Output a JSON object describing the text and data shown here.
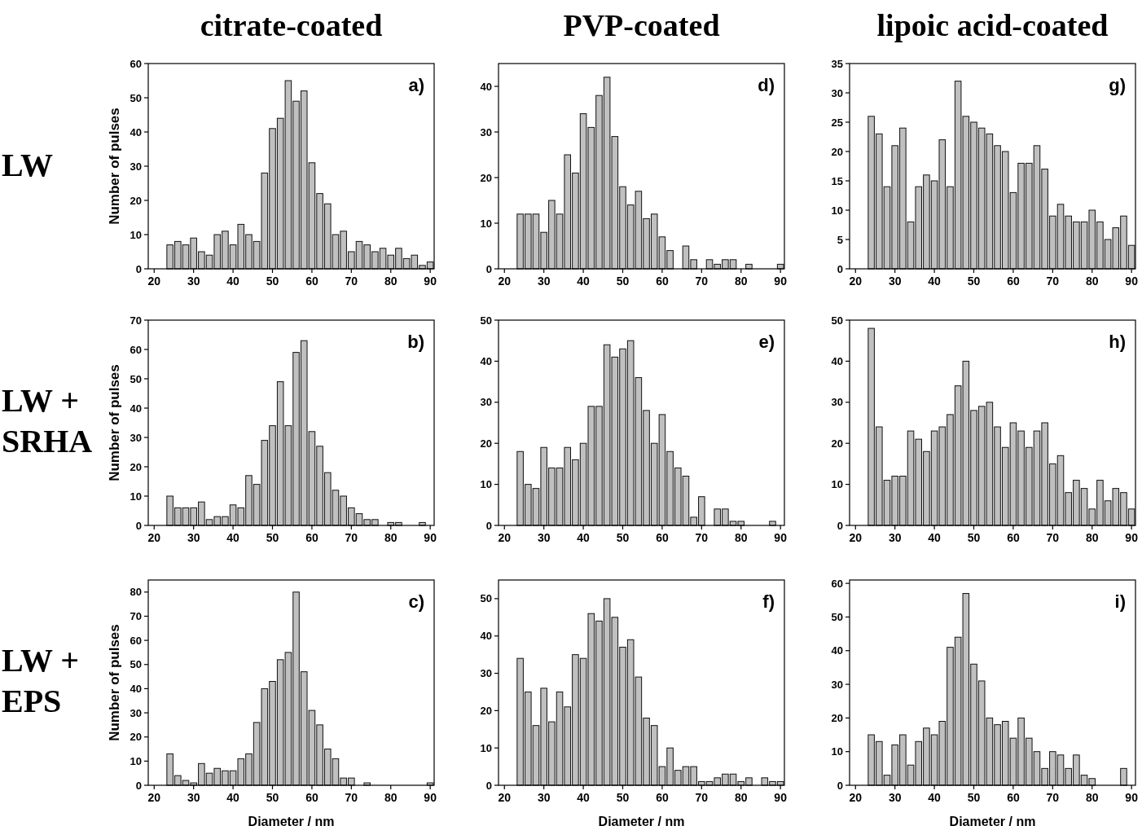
{
  "chart_data": [
    {
      "type": "histogram",
      "title": "citrate-coated",
      "ylabel": "Number of pulses",
      "annotations": [
        "a)",
        "LW"
      ],
      "color": "#c0c0c0",
      "bins": [
        23,
        25,
        27,
        29,
        31,
        33,
        35,
        37,
        39,
        41,
        43,
        45,
        47,
        49,
        51,
        53,
        55,
        57,
        59,
        61,
        63,
        65,
        67,
        69,
        71,
        73,
        75,
        77,
        79,
        81,
        83,
        85,
        87,
        89,
        91
      ],
      "values": [
        7,
        8,
        7,
        9,
        5,
        4,
        10,
        11,
        7,
        13,
        10,
        8,
        28,
        41,
        44,
        55,
        49,
        52,
        31,
        22,
        19,
        10,
        11,
        5,
        8,
        7,
        5,
        6,
        4,
        6,
        3,
        4,
        1,
        2
      ],
      "xlim": [
        18.5,
        91
      ],
      "xticks": [
        20,
        30,
        40,
        50,
        60,
        70,
        80,
        90
      ],
      "ylim": [
        0,
        60
      ],
      "yticks": [
        0,
        10,
        20,
        30,
        40,
        50,
        60
      ]
    },
    {
      "type": "histogram",
      "title": "PVP-coated",
      "annotations": [
        "d)"
      ],
      "color": "#c0c0c0",
      "bins": [
        23,
        25,
        27,
        29,
        31,
        33,
        35,
        37,
        39,
        41,
        43,
        45,
        47,
        49,
        51,
        53,
        55,
        57,
        59,
        61,
        63,
        65,
        67,
        69,
        71,
        73,
        75,
        77,
        79,
        81,
        83,
        85,
        87,
        89,
        91
      ],
      "values": [
        12,
        12,
        12,
        8,
        15,
        12,
        25,
        21,
        34,
        31,
        38,
        42,
        29,
        18,
        14,
        17,
        11,
        12,
        7,
        4,
        0,
        5,
        2,
        0,
        2,
        1,
        2,
        2,
        0,
        1,
        0,
        0,
        0,
        1
      ],
      "xlim": [
        18.5,
        91
      ],
      "xticks": [
        20,
        30,
        40,
        50,
        60,
        70,
        80,
        90
      ],
      "ylim": [
        0,
        45
      ],
      "yticks": [
        0,
        10,
        20,
        30,
        40
      ]
    },
    {
      "type": "histogram",
      "title": "lipoic acid-coated",
      "annotations": [
        "g)"
      ],
      "color": "#c0c0c0",
      "bins": [
        23,
        25,
        27,
        29,
        31,
        33,
        35,
        37,
        39,
        41,
        43,
        45,
        47,
        49,
        51,
        53,
        55,
        57,
        59,
        61,
        63,
        65,
        67,
        69,
        71,
        73,
        75,
        77,
        79,
        81,
        83,
        85,
        87,
        89,
        91
      ],
      "values": [
        26,
        23,
        14,
        21,
        24,
        8,
        14,
        16,
        15,
        22,
        14,
        32,
        26,
        25,
        24,
        23,
        21,
        20,
        13,
        18,
        18,
        21,
        17,
        9,
        11,
        9,
        8,
        8,
        10,
        8,
        5,
        7,
        9,
        4
      ],
      "xlim": [
        18.5,
        91
      ],
      "xticks": [
        20,
        30,
        40,
        50,
        60,
        70,
        80,
        90
      ],
      "ylim": [
        0,
        35
      ],
      "yticks": [
        0,
        5,
        10,
        15,
        20,
        25,
        30,
        35
      ]
    },
    {
      "type": "histogram",
      "ylabel": "Number of pulses",
      "annotations": [
        "b)",
        "LW + SRHA"
      ],
      "color": "#c0c0c0",
      "bins": [
        23,
        25,
        27,
        29,
        31,
        33,
        35,
        37,
        39,
        41,
        43,
        45,
        47,
        49,
        51,
        53,
        55,
        57,
        59,
        61,
        63,
        65,
        67,
        69,
        71,
        73,
        75,
        77,
        79,
        81,
        83,
        85,
        87,
        89,
        91
      ],
      "values": [
        10,
        6,
        6,
        6,
        8,
        2,
        3,
        3,
        7,
        6,
        17,
        14,
        29,
        34,
        49,
        34,
        59,
        63,
        32,
        27,
        18,
        12,
        10,
        6,
        4,
        2,
        2,
        0,
        1,
        1,
        0,
        0,
        1,
        0
      ],
      "xlim": [
        18.5,
        91
      ],
      "xticks": [
        20,
        30,
        40,
        50,
        60,
        70,
        80,
        90
      ],
      "ylim": [
        0,
        70
      ],
      "yticks": [
        0,
        10,
        20,
        30,
        40,
        50,
        60,
        70
      ]
    },
    {
      "type": "histogram",
      "annotations": [
        "e)"
      ],
      "color": "#c0c0c0",
      "bins": [
        23,
        25,
        27,
        29,
        31,
        33,
        35,
        37,
        39,
        41,
        43,
        45,
        47,
        49,
        51,
        53,
        55,
        57,
        59,
        61,
        63,
        65,
        67,
        69,
        71,
        73,
        75,
        77,
        79,
        81,
        83,
        85,
        87,
        89,
        91
      ],
      "values": [
        18,
        10,
        9,
        19,
        14,
        14,
        19,
        16,
        20,
        29,
        29,
        44,
        41,
        43,
        45,
        36,
        28,
        20,
        27,
        18,
        14,
        12,
        2,
        7,
        0,
        4,
        4,
        1,
        1,
        0,
        0,
        0,
        1,
        0
      ],
      "xlim": [
        18.5,
        91
      ],
      "xticks": [
        20,
        30,
        40,
        50,
        60,
        70,
        80,
        90
      ],
      "ylim": [
        0,
        50
      ],
      "yticks": [
        0,
        10,
        20,
        30,
        40,
        50
      ]
    },
    {
      "type": "histogram",
      "annotations": [
        "h)"
      ],
      "color": "#c0c0c0",
      "bins": [
        23,
        25,
        27,
        29,
        31,
        33,
        35,
        37,
        39,
        41,
        43,
        45,
        47,
        49,
        51,
        53,
        55,
        57,
        59,
        61,
        63,
        65,
        67,
        69,
        71,
        73,
        75,
        77,
        79,
        81,
        83,
        85,
        87,
        89,
        91
      ],
      "values": [
        48,
        24,
        11,
        12,
        12,
        23,
        21,
        18,
        23,
        24,
        27,
        34,
        40,
        28,
        29,
        30,
        24,
        19,
        25,
        23,
        19,
        23,
        25,
        15,
        17,
        8,
        11,
        9,
        4,
        11,
        6,
        9,
        8,
        4
      ],
      "xlim": [
        18.5,
        91
      ],
      "xticks": [
        20,
        30,
        40,
        50,
        60,
        70,
        80,
        90
      ],
      "ylim": [
        0,
        50
      ],
      "yticks": [
        0,
        10,
        20,
        30,
        40,
        50
      ]
    },
    {
      "type": "histogram",
      "xlabel": "Diameter / nm",
      "ylabel": "Number of pulses",
      "annotations": [
        "c)",
        "LW + EPS"
      ],
      "color": "#c0c0c0",
      "bins": [
        23,
        25,
        27,
        29,
        31,
        33,
        35,
        37,
        39,
        41,
        43,
        45,
        47,
        49,
        51,
        53,
        55,
        57,
        59,
        61,
        63,
        65,
        67,
        69,
        71,
        73,
        75,
        77,
        79,
        81,
        83,
        85,
        87,
        89,
        91
      ],
      "values": [
        13,
        4,
        2,
        1,
        9,
        5,
        7,
        6,
        6,
        11,
        13,
        26,
        40,
        43,
        52,
        55,
        80,
        47,
        31,
        25,
        15,
        11,
        3,
        3,
        0,
        1,
        0,
        0,
        0,
        0,
        0,
        0,
        0,
        1
      ],
      "xlim": [
        18.5,
        91
      ],
      "xticks": [
        20,
        30,
        40,
        50,
        60,
        70,
        80,
        90
      ],
      "ylim": [
        0,
        85
      ],
      "yticks": [
        0,
        10,
        20,
        30,
        40,
        50,
        60,
        70,
        80
      ]
    },
    {
      "type": "histogram",
      "xlabel": "Diameter / nm",
      "annotations": [
        "f)"
      ],
      "color": "#c0c0c0",
      "bins": [
        23,
        25,
        27,
        29,
        31,
        33,
        35,
        37,
        39,
        41,
        43,
        45,
        47,
        49,
        51,
        53,
        55,
        57,
        59,
        61,
        63,
        65,
        67,
        69,
        71,
        73,
        75,
        77,
        79,
        81,
        83,
        85,
        87,
        89,
        91
      ],
      "values": [
        34,
        25,
        16,
        26,
        17,
        25,
        21,
        35,
        34,
        46,
        44,
        50,
        45,
        37,
        39,
        29,
        18,
        16,
        5,
        10,
        4,
        5,
        5,
        1,
        1,
        2,
        3,
        3,
        1,
        2,
        0,
        2,
        1,
        1
      ],
      "xlim": [
        18.5,
        91
      ],
      "xticks": [
        20,
        30,
        40,
        50,
        60,
        70,
        80,
        90
      ],
      "ylim": [
        0,
        55
      ],
      "yticks": [
        0,
        10,
        20,
        30,
        40,
        50
      ]
    },
    {
      "type": "histogram",
      "xlabel": "Diameter / nm",
      "annotations": [
        "i)"
      ],
      "color": "#c0c0c0",
      "bins": [
        23,
        25,
        27,
        29,
        31,
        33,
        35,
        37,
        39,
        41,
        43,
        45,
        47,
        49,
        51,
        53,
        55,
        57,
        59,
        61,
        63,
        65,
        67,
        69,
        71,
        73,
        75,
        77,
        79,
        81,
        83,
        85,
        87,
        89,
        91
      ],
      "values": [
        15,
        13,
        3,
        12,
        15,
        6,
        13,
        17,
        15,
        19,
        41,
        44,
        57,
        36,
        31,
        20,
        18,
        19,
        14,
        20,
        14,
        10,
        5,
        10,
        9,
        5,
        9,
        3,
        2,
        null,
        null,
        null,
        5,
        null
      ],
      "xlim": [
        18.5,
        91
      ],
      "xticks": [
        20,
        30,
        40,
        50,
        60,
        70,
        80,
        90
      ],
      "ylim": [
        0,
        61
      ],
      "yticks": [
        0,
        10,
        20,
        30,
        40,
        50,
        60
      ]
    }
  ]
}
